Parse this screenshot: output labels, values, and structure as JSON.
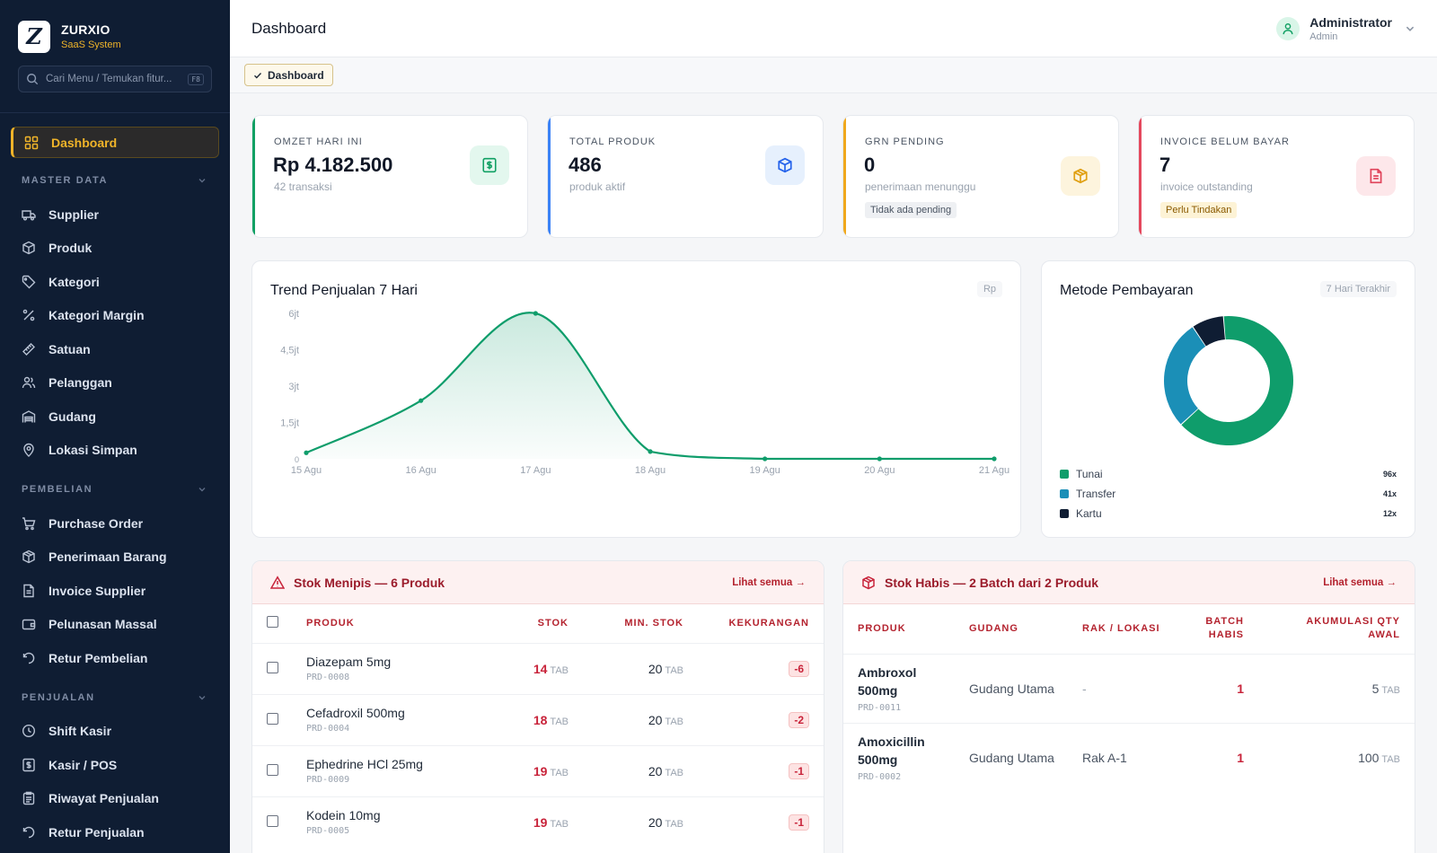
{
  "brand": {
    "name": "ZURXIO",
    "sub": "SaaS System",
    "logo_letter": "Z"
  },
  "search": {
    "placeholder": "Cari Menu / Temukan fitur...",
    "shortcut": "F8"
  },
  "nav": {
    "active": "Dashboard",
    "sections": [
      {
        "title": "MASTER DATA",
        "items": [
          "Supplier",
          "Produk",
          "Kategori",
          "Kategori Margin",
          "Satuan",
          "Pelanggan",
          "Gudang",
          "Lokasi Simpan"
        ]
      },
      {
        "title": "PEMBELIAN",
        "items": [
          "Purchase Order",
          "Penerimaan Barang",
          "Invoice Supplier",
          "Pelunasan Massal",
          "Retur Pembelian"
        ]
      },
      {
        "title": "PENJUALAN",
        "items": [
          "Shift Kasir",
          "Kasir / POS",
          "Riwayat Penjualan",
          "Retur Penjualan"
        ]
      }
    ]
  },
  "header": {
    "title": "Dashboard",
    "user_name": "Administrator",
    "user_role": "Admin"
  },
  "tabs": {
    "active": "Dashboard"
  },
  "stats": [
    {
      "label": "OMZET HARI INI",
      "value": "Rp 4.182.500",
      "sub": "42 transaksi",
      "accent": "#12a064",
      "icon_bg": "#e3f7ee",
      "icon_color": "#12a064",
      "icon": "cash-icon"
    },
    {
      "label": "TOTAL PRODUK",
      "value": "486",
      "sub": "produk aktif",
      "accent": "#3b82f6",
      "icon_bg": "#e6f0fd",
      "icon_color": "#2563eb",
      "icon": "cube-icon"
    },
    {
      "label": "GRN PENDING",
      "value": "0",
      "sub": "penerimaan menunggu",
      "pill": "Tidak ada pending",
      "pill_bg": "#eef0f3",
      "pill_color": "#4b5563",
      "accent": "#f0a81c",
      "icon_bg": "#fdf4dd",
      "icon_color": "#e0a012",
      "icon": "package-icon"
    },
    {
      "label": "INVOICE BELUM BAYAR",
      "value": "7",
      "sub": "invoice outstanding",
      "pill": "Perlu Tindakan",
      "pill_bg": "#fdf3d6",
      "pill_color": "#8a5a00",
      "accent": "#e5485d",
      "icon_bg": "#fde7ea",
      "icon_color": "#e0435a",
      "icon": "invoice-icon"
    }
  ],
  "trend": {
    "title": "Trend Penjualan 7 Hari",
    "badge": "Rp"
  },
  "payment": {
    "title": "Metode Pembayaran",
    "badge": "7 Hari Terakhir"
  },
  "chart_data": [
    {
      "type": "area",
      "title": "Trend Penjualan 7 Hari",
      "x": [
        "15 Agu",
        "16 Agu",
        "17 Agu",
        "18 Agu",
        "19 Agu",
        "20 Agu",
        "21 Agu"
      ],
      "values": [
        250000,
        2400000,
        6000000,
        300000,
        0,
        0,
        0
      ],
      "ylim": [
        0,
        6000000
      ],
      "yticks": [
        "0",
        "1,5jt",
        "3jt",
        "4,5jt",
        "6jt"
      ],
      "ytick_values": [
        0,
        1500000,
        3000000,
        4500000,
        6000000
      ],
      "color": "#0f9d6b"
    },
    {
      "type": "pie",
      "title": "Metode Pembayaran",
      "series": [
        {
          "name": "Tunai",
          "value": 96,
          "label": "96x",
          "color": "#0f9d6b"
        },
        {
          "name": "Transfer",
          "value": 41,
          "label": "41x",
          "color": "#1b8fb7"
        },
        {
          "name": "Kartu",
          "value": 12,
          "label": "12x",
          "color": "#0f1d33"
        }
      ]
    }
  ],
  "low_stock": {
    "title": "Stok Menipis — 6 Produk",
    "link": "Lihat semua",
    "columns": [
      "PRODUK",
      "STOK",
      "MIN. STOK",
      "KEKURANGAN"
    ],
    "rows": [
      {
        "name": "Diazepam 5mg",
        "code": "PRD-0008",
        "stock": "14",
        "unit": "TAB",
        "min": "20",
        "deficit": "-6"
      },
      {
        "name": "Cefadroxil 500mg",
        "code": "PRD-0004",
        "stock": "18",
        "unit": "TAB",
        "min": "20",
        "deficit": "-2"
      },
      {
        "name": "Ephedrine HCl 25mg",
        "code": "PRD-0009",
        "stock": "19",
        "unit": "TAB",
        "min": "20",
        "deficit": "-1"
      },
      {
        "name": "Kodein 10mg",
        "code": "PRD-0005",
        "stock": "19",
        "unit": "TAB",
        "min": "20",
        "deficit": "-1"
      }
    ]
  },
  "out_stock": {
    "title": "Stok Habis — 2 Batch dari 2 Produk",
    "link": "Lihat semua",
    "columns": [
      "PRODUK",
      "GUDANG",
      "RAK / LOKASI",
      "BATCH HABIS",
      "AKUMULASI QTY AWAL"
    ],
    "rows": [
      {
        "name": "Ambroxol 500mg",
        "code": "PRD-0011",
        "warehouse": "Gudang Utama",
        "rack": "-",
        "batch": "1",
        "qty": "5",
        "unit": "TAB"
      },
      {
        "name": "Amoxicillin 500mg",
        "code": "PRD-0002",
        "warehouse": "Gudang Utama",
        "rack": "Rak A-1",
        "batch": "1",
        "qty": "100",
        "unit": "TAB"
      }
    ]
  }
}
